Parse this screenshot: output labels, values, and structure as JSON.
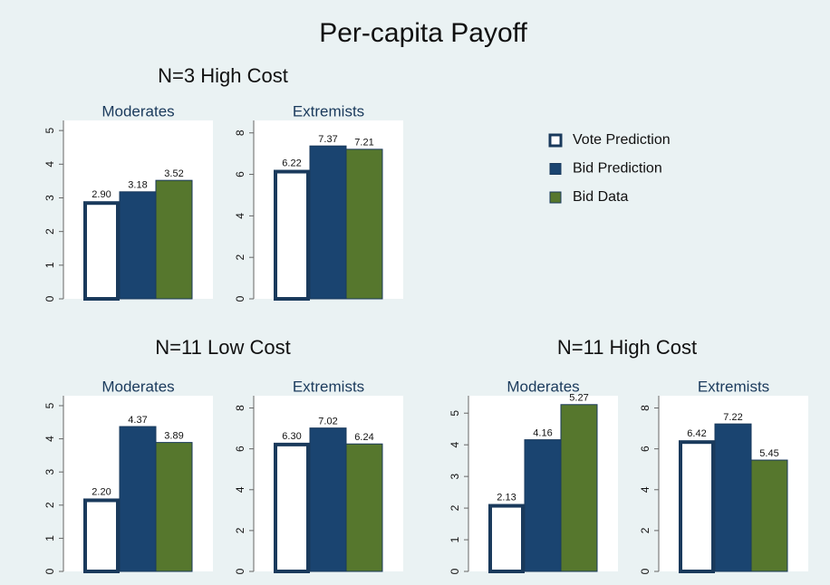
{
  "title": "Per-capita Payoff",
  "groups": [
    "N=3 High Cost",
    "N=11 Low Cost",
    "N=11 High Cost"
  ],
  "chart_data": [
    {
      "type": "bar",
      "title": "Moderates",
      "ylim": [
        0,
        5.3
      ],
      "yticks": [
        0,
        1,
        2,
        3,
        4,
        5
      ],
      "grid": false,
      "series": [
        {
          "name": "Vote Prediction",
          "color": "#ffffff",
          "values": [
            2.9
          ],
          "value_labels": [
            "2.90"
          ]
        },
        {
          "name": "Bid Prediction",
          "color": "#1a4470",
          "values": [
            3.18
          ]
        },
        {
          "name": "Bid Data",
          "color": "#56772d",
          "values": [
            3.52
          ]
        }
      ]
    },
    {
      "type": "bar",
      "title": "Extremists",
      "ylim": [
        0,
        8.6
      ],
      "yticks": [
        0,
        2,
        4,
        6,
        8
      ],
      "grid": false,
      "series": [
        {
          "name": "Vote Prediction",
          "color": "#ffffff",
          "values": [
            6.22
          ]
        },
        {
          "name": "Bid Prediction",
          "color": "#1a4470",
          "values": [
            7.37
          ]
        },
        {
          "name": "Bid Data",
          "color": "#56772d",
          "values": [
            7.21
          ]
        }
      ]
    },
    {
      "type": "bar",
      "title": "Moderates",
      "ylim": [
        0,
        5.3
      ],
      "yticks": [
        0,
        1,
        2,
        3,
        4,
        5
      ],
      "grid": false,
      "series": [
        {
          "name": "Vote Prediction",
          "color": "#ffffff",
          "values": [
            2.2
          ],
          "value_labels": [
            "2.20"
          ]
        },
        {
          "name": "Bid Prediction",
          "color": "#1a4470",
          "values": [
            4.37
          ]
        },
        {
          "name": "Bid Data",
          "color": "#56772d",
          "values": [
            3.89
          ]
        }
      ]
    },
    {
      "type": "bar",
      "title": "Extremists",
      "ylim": [
        0,
        8.6
      ],
      "yticks": [
        0,
        2,
        4,
        6,
        8
      ],
      "grid": false,
      "series": [
        {
          "name": "Vote Prediction",
          "color": "#ffffff",
          "values": [
            6.3
          ],
          "value_labels": [
            "6.30"
          ]
        },
        {
          "name": "Bid Prediction",
          "color": "#1a4470",
          "values": [
            7.02
          ]
        },
        {
          "name": "Bid Data",
          "color": "#56772d",
          "values": [
            6.24
          ]
        }
      ]
    },
    {
      "type": "bar",
      "title": "Moderates",
      "ylim": [
        0,
        5.55
      ],
      "yticks": [
        0,
        1,
        2,
        3,
        4,
        5
      ],
      "grid": false,
      "series": [
        {
          "name": "Vote Prediction",
          "color": "#ffffff",
          "values": [
            2.13
          ]
        },
        {
          "name": "Bid Prediction",
          "color": "#1a4470",
          "values": [
            4.16
          ]
        },
        {
          "name": "Bid Data",
          "color": "#56772d",
          "values": [
            5.27
          ]
        }
      ]
    },
    {
      "type": "bar",
      "title": "Extremists",
      "ylim": [
        0,
        8.6
      ],
      "yticks": [
        0,
        2,
        4,
        6,
        8
      ],
      "grid": false,
      "series": [
        {
          "name": "Vote Prediction",
          "color": "#ffffff",
          "values": [
            6.42
          ]
        },
        {
          "name": "Bid Prediction",
          "color": "#1a4470",
          "values": [
            7.22
          ]
        },
        {
          "name": "Bid Data",
          "color": "#56772d",
          "values": [
            5.45
          ]
        }
      ]
    }
  ]
}
